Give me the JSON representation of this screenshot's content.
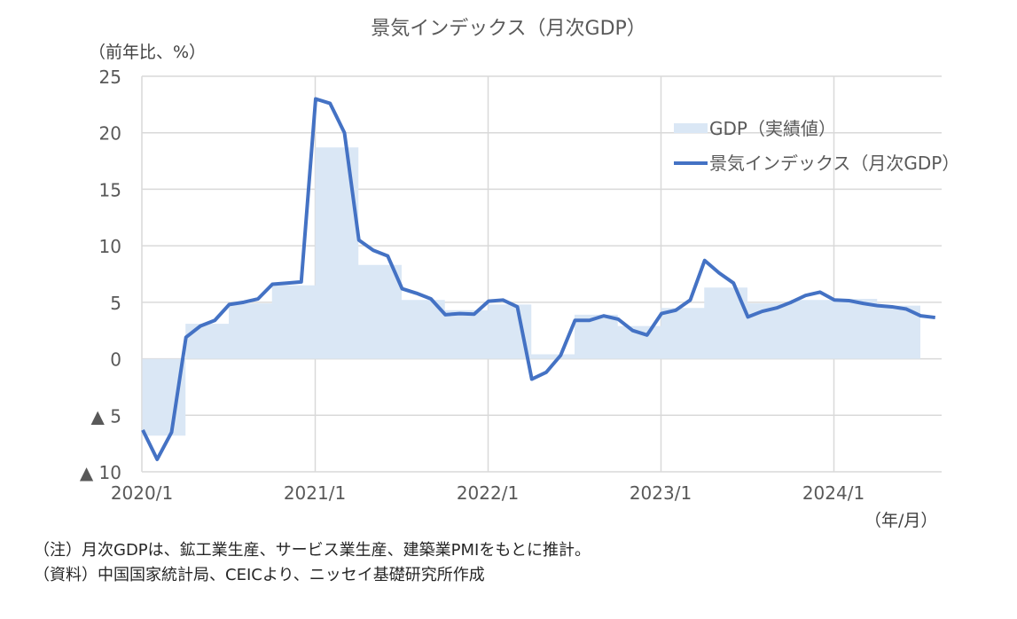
{
  "chart_data": {
    "type": "line",
    "title": "景気インデックス（月次GDP）",
    "ylabel": "（前年比、%）",
    "xlabel": "（年/月）",
    "ylim": [
      -10,
      25
    ],
    "yticks": [
      25,
      20,
      15,
      10,
      5,
      0,
      -5,
      -10
    ],
    "ytick_labels": [
      "25",
      "20",
      "15",
      "10",
      "5",
      "0",
      "▲ 5",
      "▲ 10"
    ],
    "xtick_labels": [
      "2020/1",
      "2021/1",
      "2022/1",
      "2023/1",
      "2024/1"
    ],
    "grid": true,
    "legend_position": "upper right",
    "series": [
      {
        "name": "GDP（実績値）",
        "kind": "area-step-quarterly",
        "color": "#DAE7F5",
        "quarters": [
          "2020Q1",
          "2020Q2",
          "2020Q3",
          "2020Q4",
          "2021Q1",
          "2021Q2",
          "2021Q3",
          "2021Q4",
          "2022Q1",
          "2022Q2",
          "2022Q3",
          "2022Q4",
          "2023Q1",
          "2023Q2",
          "2023Q3",
          "2023Q4",
          "2024Q1",
          "2024Q2"
        ],
        "values": [
          -6.8,
          3.1,
          4.9,
          6.5,
          18.7,
          8.3,
          5.2,
          4.3,
          4.8,
          0.4,
          3.9,
          2.9,
          4.5,
          6.3,
          4.9,
          5.2,
          5.3,
          4.7
        ]
      },
      {
        "name": "景気インデックス（月次GDP）",
        "kind": "line-monthly",
        "color": "#4472C4",
        "start": "2020/1",
        "values": [
          -6.3,
          -8.9,
          -6.5,
          1.9,
          2.9,
          3.4,
          4.8,
          5.0,
          5.3,
          6.6,
          6.7,
          6.8,
          23.0,
          22.6,
          20.0,
          10.5,
          9.6,
          9.1,
          6.2,
          5.8,
          5.3,
          3.9,
          4.0,
          3.95,
          5.1,
          5.2,
          4.6,
          -1.8,
          -1.2,
          0.3,
          3.4,
          3.4,
          3.8,
          3.5,
          2.5,
          2.1,
          4.0,
          4.3,
          5.2,
          8.7,
          7.6,
          6.7,
          3.7,
          4.2,
          4.5,
          5.0,
          5.6,
          5.9,
          5.2,
          5.15,
          4.9,
          4.7,
          4.6,
          4.4,
          3.8,
          3.65
        ]
      }
    ]
  },
  "header": {
    "title": "景気インデックス（月次GDP）",
    "y_unit": "（前年比、%）",
    "x_unit": "（年/月）"
  },
  "legend": {
    "items": [
      {
        "label": "GDP（実績値）",
        "type": "area",
        "color": "#DAE7F5"
      },
      {
        "label": "景気インデックス（月次GDP）",
        "type": "line",
        "color": "#4472C4"
      }
    ]
  },
  "notes": {
    "note": "（注）月次GDPは、鉱工業生産、サービス業生産、建築業PMIをもとに推計。",
    "source": "（資料）中国国家統計局、CEICより、ニッセイ基礎研究所作成"
  }
}
